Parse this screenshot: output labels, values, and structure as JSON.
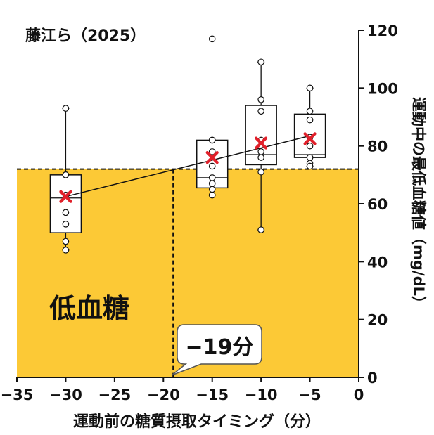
{
  "colors": {
    "hypoglycemia_fill": "#FCC936",
    "mean_marker": "#E0202A",
    "callout_text": "#E0202A",
    "axis": "#111111"
  },
  "chart_data": {
    "type": "box",
    "title": "藤江ら（2025）",
    "xlabel": "運動前の糖質摂取タイミング（分）",
    "ylabel": "運動中の最低血糖値（mg/dL）",
    "xlim": [
      -35,
      0
    ],
    "ylim": [
      0,
      120
    ],
    "x_ticks": [
      -35,
      -30,
      -25,
      -20,
      -15,
      -10,
      -5,
      0
    ],
    "x_tick_labels": [
      "−35",
      "−30",
      "−25",
      "−20",
      "−15",
      "−10",
      "−5",
      "0"
    ],
    "y_ticks": [
      0,
      20,
      40,
      60,
      80,
      100,
      120
    ],
    "y_tick_labels": [
      "0",
      "20",
      "40",
      "60",
      "80",
      "100",
      "120"
    ],
    "threshold": 72,
    "zone_label": "低血糖",
    "groups": [
      {
        "x": -30,
        "whisker_low": 44,
        "q1": 50,
        "median": 62,
        "q3": 70,
        "whisker_high": 93,
        "mean": 62.5,
        "points": [
          93,
          70,
          70,
          63,
          57,
          53,
          47,
          44
        ]
      },
      {
        "x": -15,
        "whisker_low": 63,
        "q1": 65.5,
        "median": 69,
        "q3": 82,
        "whisker_high": 82,
        "mean": 76,
        "points": [
          117,
          82,
          82,
          78,
          73,
          69,
          67,
          65,
          63
        ]
      },
      {
        "x": -10,
        "whisker_low": 51,
        "q1": 73.5,
        "median": 77,
        "q3": 94,
        "whisker_high": 109,
        "mean": 81,
        "points": [
          109,
          96,
          92,
          82,
          78,
          76,
          71,
          51
        ]
      },
      {
        "x": -5,
        "whisker_low": 73,
        "q1": 76,
        "median": 77,
        "q3": 91,
        "whisker_high": 100,
        "mean": 82.5,
        "points": [
          100,
          92,
          89,
          83,
          80,
          76,
          76,
          74,
          73
        ]
      }
    ],
    "mean_trend": [
      {
        "x": -30,
        "y": 62.5
      },
      {
        "x": -5,
        "y": 83.5
      }
    ],
    "crossing": {
      "x": -19,
      "y": 72
    },
    "annotation": "−19分"
  }
}
